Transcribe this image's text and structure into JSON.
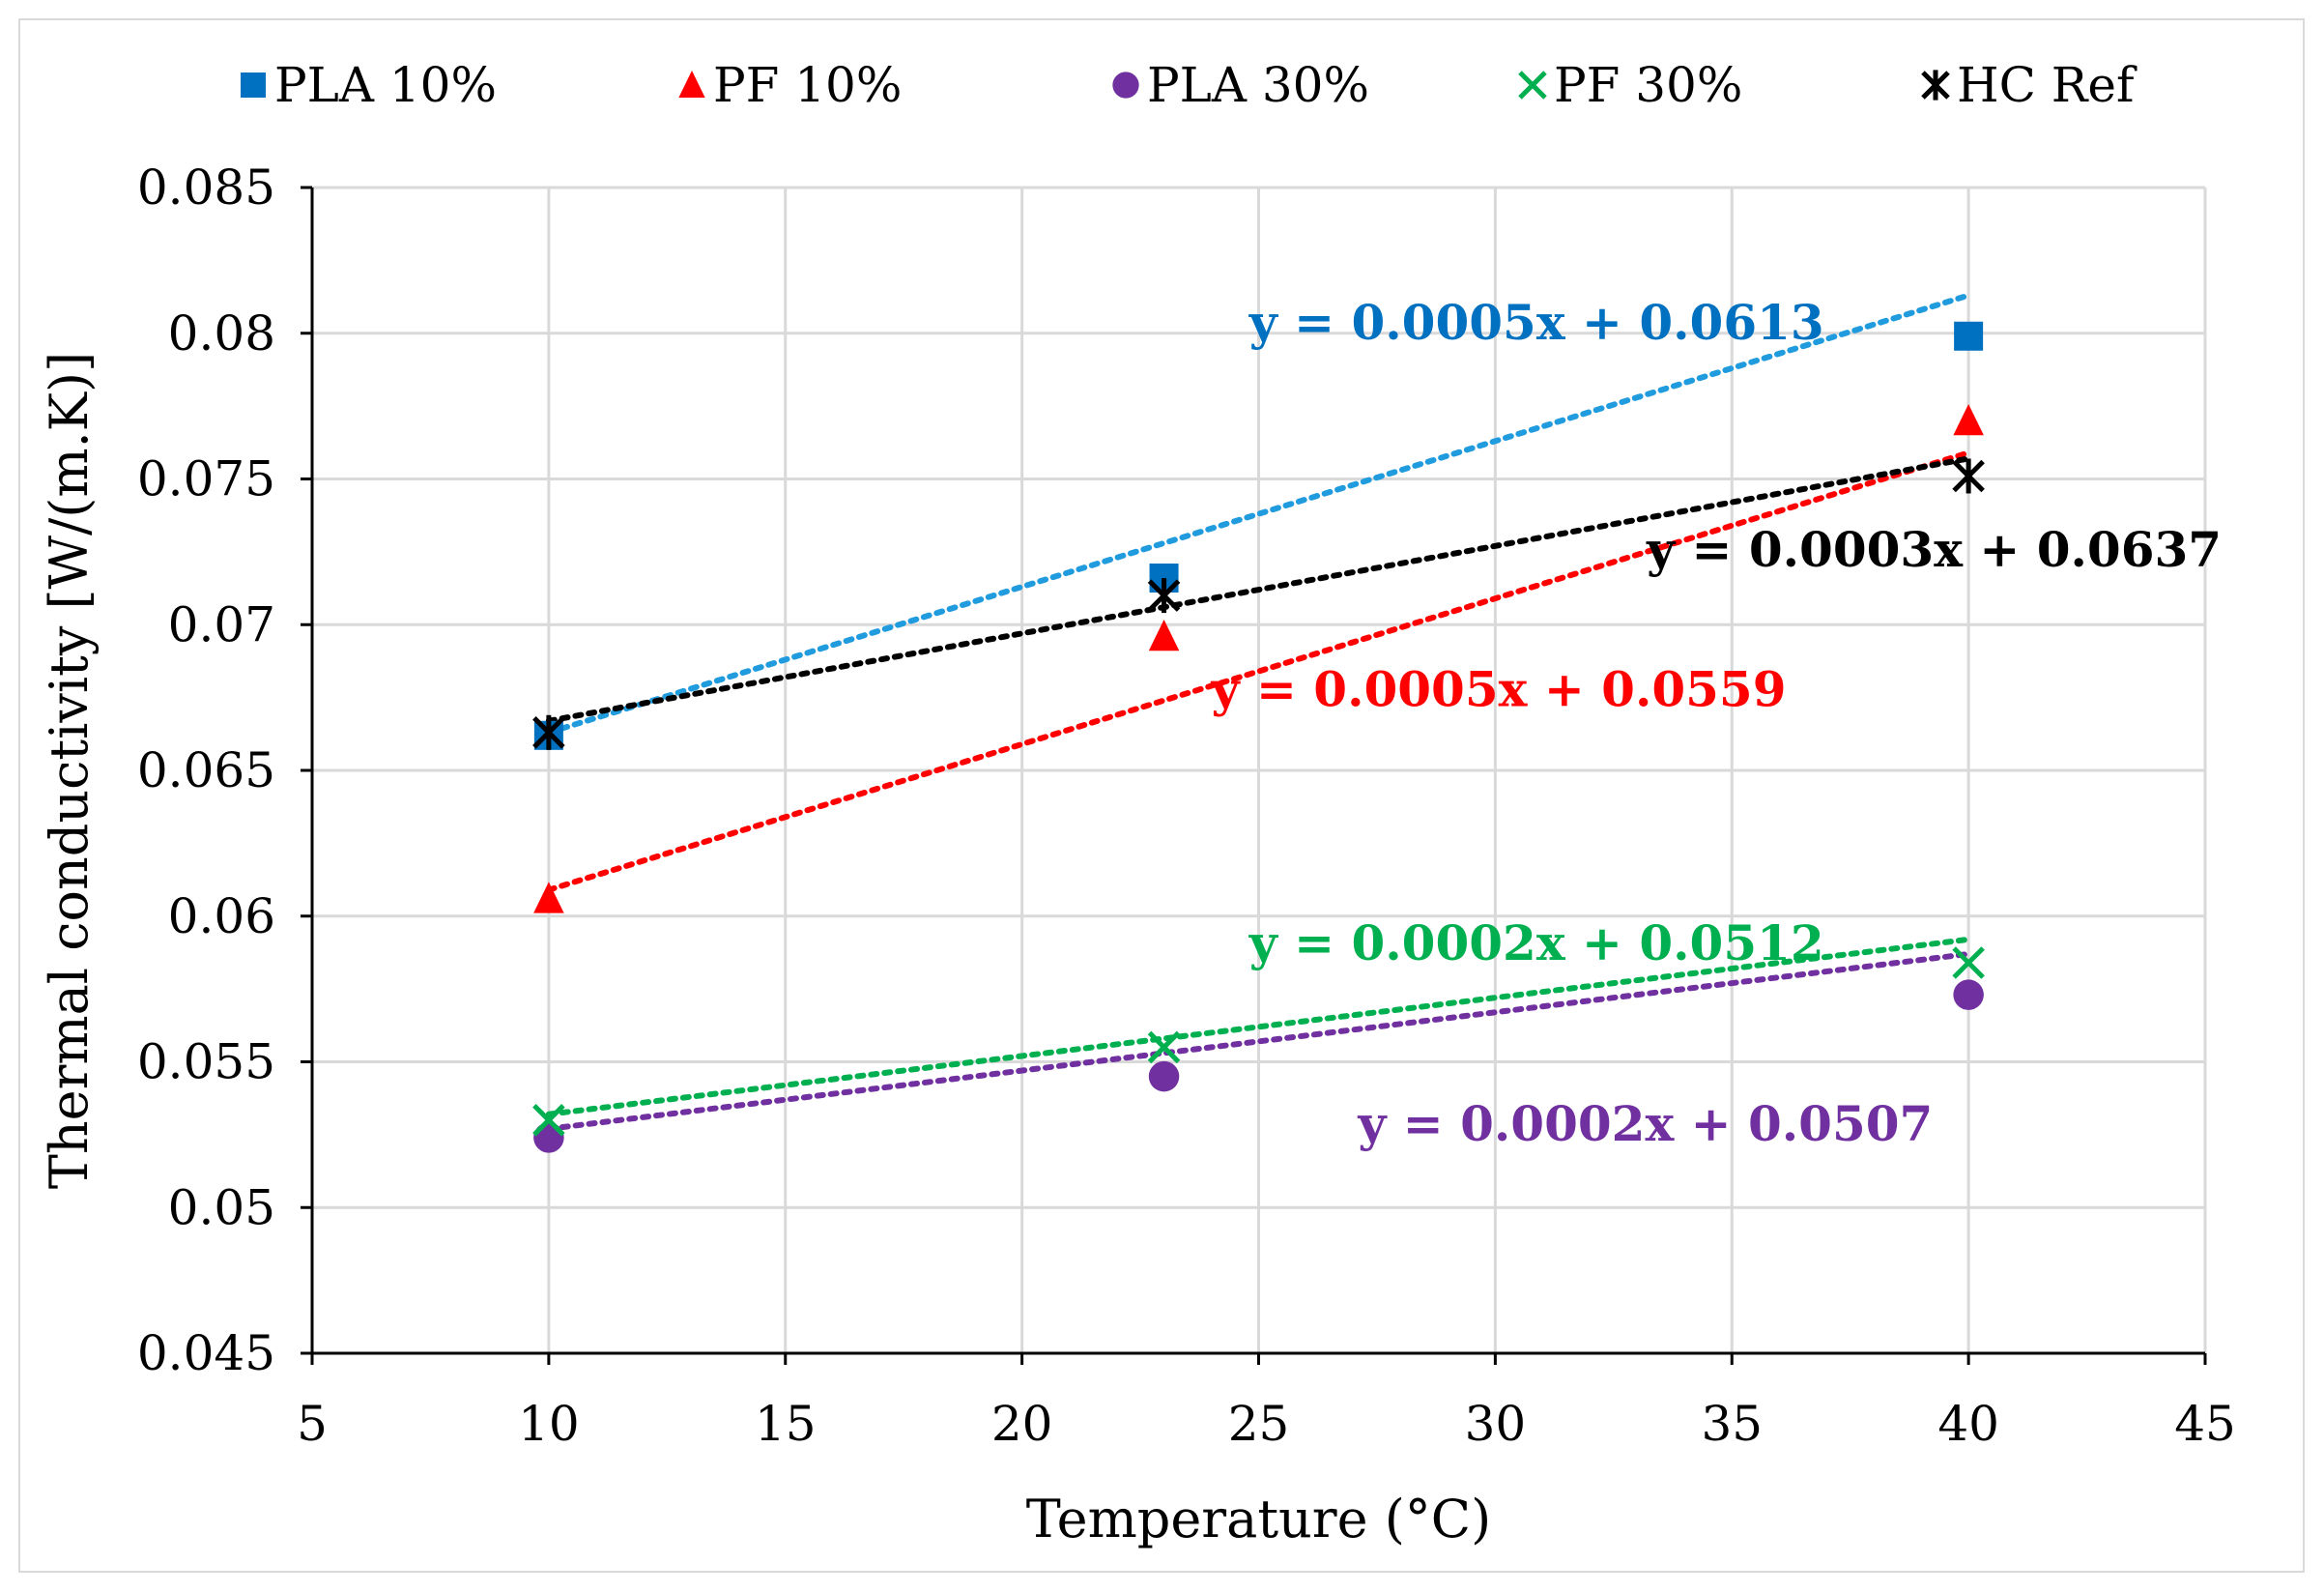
{
  "chart_data": {
    "type": "scatter",
    "title": "",
    "xlabel": "Temperature (°C)",
    "ylabel": "Thermal conductivity [W/(m.K)]",
    "xlim": [
      5,
      45
    ],
    "ylim": [
      0.045,
      0.085
    ],
    "xticks": [
      5,
      10,
      15,
      20,
      25,
      30,
      35,
      40,
      45
    ],
    "yticks": [
      0.045,
      0.05,
      0.055,
      0.06,
      0.065,
      0.07,
      0.075,
      0.08,
      0.085
    ],
    "xtick_labels": [
      "5",
      "10",
      "15",
      "20",
      "25",
      "30",
      "35",
      "40",
      "45"
    ],
    "ytick_labels": [
      "0.045",
      "0.05",
      "0.055",
      "0.06",
      "0.065",
      "0.07",
      "0.075",
      "0.08",
      "0.085"
    ],
    "grid": true,
    "legend_position": "top",
    "series": [
      {
        "name": "PLA 10%",
        "marker": "square",
        "color": "#0070C0",
        "trend_color": "#1F9BDE",
        "x": [
          10,
          23,
          40
        ],
        "y": [
          0.0662,
          0.0716,
          0.0799
        ],
        "trendline": {
          "slope": 0.0005,
          "intercept": 0.0613,
          "equation": "y = 0.0005x + 0.0613"
        }
      },
      {
        "name": "PF 10%",
        "marker": "triangle",
        "color": "#FF0000",
        "trend_color": "#FF0000",
        "x": [
          10,
          23,
          40
        ],
        "y": [
          0.0606,
          0.0696,
          0.077
        ],
        "trendline": {
          "slope": 0.0005,
          "intercept": 0.0559,
          "equation": "y = 0.0005x + 0.0559"
        }
      },
      {
        "name": "PLA 30%",
        "marker": "circle",
        "color": "#7030A0",
        "trend_color": "#7030A0",
        "x": [
          10,
          23,
          40
        ],
        "y": [
          0.0524,
          0.0545,
          0.0573
        ],
        "trendline": {
          "slope": 0.0002,
          "intercept": 0.0507,
          "equation": "y = 0.0002x + 0.0507"
        }
      },
      {
        "name": "PF 30%",
        "marker": "x",
        "color": "#00B050",
        "trend_color": "#00B050",
        "x": [
          10,
          23,
          40
        ],
        "y": [
          0.053,
          0.0555,
          0.0584
        ],
        "trendline": {
          "slope": 0.0002,
          "intercept": 0.0512,
          "equation": "y = 0.0002x + 0.0512"
        }
      },
      {
        "name": "HC Ref",
        "marker": "star",
        "color": "#000000",
        "trend_color": "#000000",
        "x": [
          10,
          23,
          40
        ],
        "y": [
          0.0663,
          0.071,
          0.0751
        ],
        "trendline": {
          "slope": 0.0003,
          "intercept": 0.0637,
          "equation": "y = 0.0003x + 0.0637"
        }
      }
    ],
    "annotations": [
      {
        "text": "y = 0.0005x + 0.0613",
        "series": "PLA 10%",
        "x": 24.8,
        "y": 0.0798
      },
      {
        "text": "y = 0.0005x + 0.0559",
        "series": "PF 10%",
        "x": 24.0,
        "y": 0.0672
      },
      {
        "text": "y = 0.0003x + 0.0637",
        "series": "HC Ref",
        "x": 33.2,
        "y": 0.072
      },
      {
        "text": "y = 0.0002x + 0.0512",
        "series": "PF 30%",
        "x": 24.8,
        "y": 0.0585
      },
      {
        "text": "y = 0.0002x + 0.0507",
        "series": "PLA 30%",
        "x": 27.1,
        "y": 0.0523
      }
    ]
  }
}
